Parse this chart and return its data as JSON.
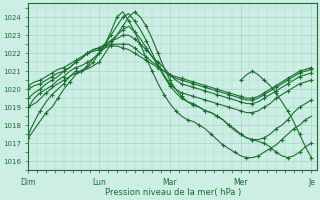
{
  "background_color": "#cceee4",
  "plot_bg_color": "#cceee4",
  "grid_color": "#aad4c8",
  "line_color": "#1a6e2e",
  "xlabel": "Pression niveau de la mer( hPa )",
  "ylim": [
    1015.5,
    1024.8
  ],
  "yticks": [
    1016,
    1017,
    1018,
    1019,
    1020,
    1021,
    1022,
    1023,
    1024
  ],
  "xtick_labels": [
    "Dim",
    "Lun",
    "Mar",
    "Mer",
    "Je"
  ],
  "xtick_positions": [
    0,
    24,
    48,
    72,
    96
  ],
  "xlim": [
    0,
    98
  ],
  "series": [
    {
      "x": [
        0,
        2,
        4,
        6,
        8,
        10,
        12,
        14,
        16,
        18,
        20,
        22,
        24,
        26,
        28,
        30,
        32,
        34,
        36,
        38,
        40,
        42,
        44,
        46,
        48,
        50,
        52,
        54,
        56,
        58,
        60,
        62,
        64,
        66,
        68,
        70,
        72,
        74,
        76,
        78,
        80,
        82,
        84,
        86,
        88,
        90,
        92,
        94,
        96
      ],
      "y": [
        1017.5,
        1018.2,
        1018.8,
        1019.3,
        1019.7,
        1020.0,
        1020.3,
        1020.7,
        1021.0,
        1021.0,
        1021.3,
        1021.7,
        1022.0,
        1022.5,
        1023.0,
        1023.5,
        1024.0,
        1024.2,
        1023.8,
        1023.3,
        1022.7,
        1022.0,
        1021.3,
        1020.7,
        1020.2,
        1019.8,
        1019.5,
        1019.3,
        1019.2,
        1019.0,
        1018.8,
        1018.7,
        1018.5,
        1018.3,
        1018.0,
        1017.7,
        1017.5,
        1017.3,
        1017.2,
        1017.2,
        1017.3,
        1017.5,
        1017.8,
        1018.0,
        1018.3,
        1018.7,
        1019.0,
        1019.2,
        1019.4
      ]
    },
    {
      "x": [
        0,
        2,
        4,
        6,
        8,
        10,
        12,
        14,
        16,
        18,
        20,
        22,
        24,
        26,
        28,
        30,
        32,
        34,
        36,
        38,
        40,
        42,
        44,
        46,
        48,
        50,
        52,
        54,
        56,
        58,
        60,
        62,
        64,
        66,
        68,
        70,
        72,
        74,
        76,
        78,
        80,
        82,
        84,
        86,
        88,
        90,
        92,
        94,
        96
      ],
      "y": [
        1019.0,
        1019.5,
        1019.8,
        1020.0,
        1020.2,
        1020.5,
        1020.7,
        1021.0,
        1021.2,
        1021.3,
        1021.5,
        1021.7,
        1022.0,
        1022.3,
        1022.7,
        1023.0,
        1023.3,
        1023.5,
        1023.2,
        1022.8,
        1022.3,
        1021.8,
        1021.3,
        1020.8,
        1020.3,
        1020.0,
        1019.8,
        1019.7,
        1019.6,
        1019.5,
        1019.4,
        1019.3,
        1019.2,
        1019.1,
        1019.0,
        1018.9,
        1018.8,
        1018.7,
        1018.7,
        1018.8,
        1019.0,
        1019.2,
        1019.5,
        1019.7,
        1019.9,
        1020.1,
        1020.3,
        1020.4,
        1020.5
      ]
    },
    {
      "x": [
        0,
        2,
        4,
        6,
        8,
        10,
        12,
        14,
        16,
        18,
        20,
        22,
        24,
        26,
        28,
        30,
        32,
        34,
        36,
        38,
        40,
        42,
        44,
        46,
        48,
        50,
        52,
        54,
        56,
        58,
        60,
        62,
        64,
        66,
        68,
        70,
        72,
        74,
        76,
        78,
        80,
        82,
        84,
        86,
        88,
        90,
        92,
        94,
        96
      ],
      "y": [
        1019.5,
        1019.8,
        1020.0,
        1020.3,
        1020.5,
        1020.7,
        1021.0,
        1021.2,
        1021.5,
        1021.7,
        1022.0,
        1022.2,
        1022.3,
        1022.5,
        1022.7,
        1022.8,
        1023.0,
        1023.0,
        1022.8,
        1022.5,
        1022.2,
        1021.8,
        1021.5,
        1021.2,
        1020.8,
        1020.5,
        1020.3,
        1020.2,
        1020.1,
        1020.0,
        1019.9,
        1019.8,
        1019.7,
        1019.6,
        1019.5,
        1019.4,
        1019.3,
        1019.2,
        1019.2,
        1019.3,
        1019.5,
        1019.7,
        1019.9,
        1020.1,
        1020.3,
        1020.5,
        1020.7,
        1020.8,
        1020.9
      ]
    },
    {
      "x": [
        0,
        2,
        4,
        6,
        8,
        10,
        12,
        14,
        16,
        18,
        20,
        22,
        24,
        26,
        28,
        30,
        32,
        34,
        36,
        38,
        40,
        42,
        44,
        46,
        48,
        50,
        52,
        54,
        56,
        58,
        60,
        62,
        64,
        66,
        68,
        70,
        72,
        74,
        76,
        78,
        80,
        82,
        84,
        86,
        88,
        90,
        92,
        94,
        96
      ],
      "y": [
        1020.0,
        1020.2,
        1020.3,
        1020.5,
        1020.7,
        1020.9,
        1021.0,
        1021.2,
        1021.5,
        1021.7,
        1022.0,
        1022.2,
        1022.3,
        1022.4,
        1022.5,
        1022.5,
        1022.5,
        1022.5,
        1022.3,
        1022.0,
        1021.8,
        1021.5,
        1021.3,
        1021.0,
        1020.8,
        1020.6,
        1020.5,
        1020.4,
        1020.3,
        1020.2,
        1020.1,
        1020.0,
        1019.9,
        1019.8,
        1019.7,
        1019.6,
        1019.5,
        1019.4,
        1019.4,
        1019.5,
        1019.7,
        1019.9,
        1020.1,
        1020.3,
        1020.5,
        1020.7,
        1020.9,
        1021.0,
        1021.1
      ]
    },
    {
      "x": [
        0,
        2,
        4,
        6,
        8,
        10,
        12,
        14,
        16,
        18,
        20,
        22,
        24,
        26,
        28,
        30,
        32,
        34,
        36,
        38,
        40,
        42,
        44,
        46,
        48,
        50,
        52,
        54,
        56,
        58,
        60,
        62,
        64,
        66,
        68,
        70,
        72,
        74,
        76,
        78,
        80,
        82,
        84,
        86,
        88,
        90,
        92,
        94,
        96
      ],
      "y": [
        1020.2,
        1020.4,
        1020.5,
        1020.7,
        1020.9,
        1021.1,
        1021.2,
        1021.4,
        1021.6,
        1021.8,
        1022.0,
        1022.1,
        1022.2,
        1022.3,
        1022.4,
        1022.4,
        1022.3,
        1022.2,
        1022.0,
        1021.8,
        1021.6,
        1021.4,
        1021.2,
        1021.0,
        1020.8,
        1020.7,
        1020.6,
        1020.5,
        1020.4,
        1020.3,
        1020.2,
        1020.1,
        1020.0,
        1019.9,
        1019.8,
        1019.7,
        1019.6,
        1019.5,
        1019.5,
        1019.6,
        1019.8,
        1020.0,
        1020.2,
        1020.4,
        1020.6,
        1020.8,
        1021.0,
        1021.1,
        1021.2
      ]
    },
    {
      "x": [
        0,
        3,
        6,
        8,
        10,
        12,
        14,
        16,
        18,
        20,
        22,
        24,
        26,
        28,
        30,
        32,
        34,
        36,
        38,
        40,
        42,
        44,
        46,
        48,
        50,
        52,
        54,
        56,
        58,
        60,
        62,
        64,
        66,
        68,
        70,
        72,
        74,
        76,
        78,
        80,
        82,
        84,
        86,
        88,
        90,
        92,
        94,
        96
      ],
      "y": [
        1017.3,
        1018.0,
        1018.7,
        1019.0,
        1019.5,
        1020.0,
        1020.4,
        1020.8,
        1021.0,
        1021.2,
        1021.5,
        1022.0,
        1022.5,
        1023.2,
        1024.0,
        1024.3,
        1023.8,
        1023.2,
        1022.5,
        1021.7,
        1021.0,
        1020.3,
        1019.7,
        1019.2,
        1018.8,
        1018.5,
        1018.3,
        1018.2,
        1018.0,
        1017.8,
        1017.5,
        1017.2,
        1016.9,
        1016.7,
        1016.5,
        1016.3,
        1016.2,
        1016.2,
        1016.3,
        1016.5,
        1016.7,
        1016.9,
        1017.2,
        1017.5,
        1017.8,
        1018.0,
        1018.3,
        1018.5
      ]
    },
    {
      "x": [
        0,
        3,
        6,
        9,
        12,
        15,
        18,
        21,
        24,
        26,
        28,
        30,
        32,
        34,
        36,
        38,
        40,
        42,
        44,
        46,
        48,
        50,
        52,
        54,
        56,
        58,
        60,
        62,
        64,
        66,
        68,
        70,
        72,
        74,
        76,
        78,
        80,
        82,
        84,
        86,
        88,
        90,
        92,
        94,
        96
      ],
      "y": [
        1019.0,
        1019.3,
        1019.8,
        1020.2,
        1020.5,
        1020.8,
        1021.0,
        1021.2,
        1021.5,
        1022.0,
        1022.5,
        1023.0,
        1023.5,
        1024.0,
        1024.3,
        1024.0,
        1023.5,
        1022.8,
        1022.0,
        1021.2,
        1020.5,
        1020.0,
        1019.6,
        1019.3,
        1019.1,
        1019.0,
        1018.8,
        1018.7,
        1018.5,
        1018.3,
        1018.0,
        1017.8,
        1017.5,
        1017.3,
        1017.2,
        1017.1,
        1017.0,
        1016.8,
        1016.5,
        1016.3,
        1016.2,
        1016.3,
        1016.5,
        1016.8,
        1017.0
      ]
    },
    {
      "x": [
        72,
        74,
        76,
        78,
        80,
        82,
        84,
        86,
        88,
        90,
        92,
        94,
        96
      ],
      "y": [
        1020.5,
        1020.8,
        1021.0,
        1020.8,
        1020.5,
        1020.2,
        1019.8,
        1019.3,
        1018.8,
        1018.2,
        1017.5,
        1016.8,
        1016.2
      ]
    }
  ]
}
